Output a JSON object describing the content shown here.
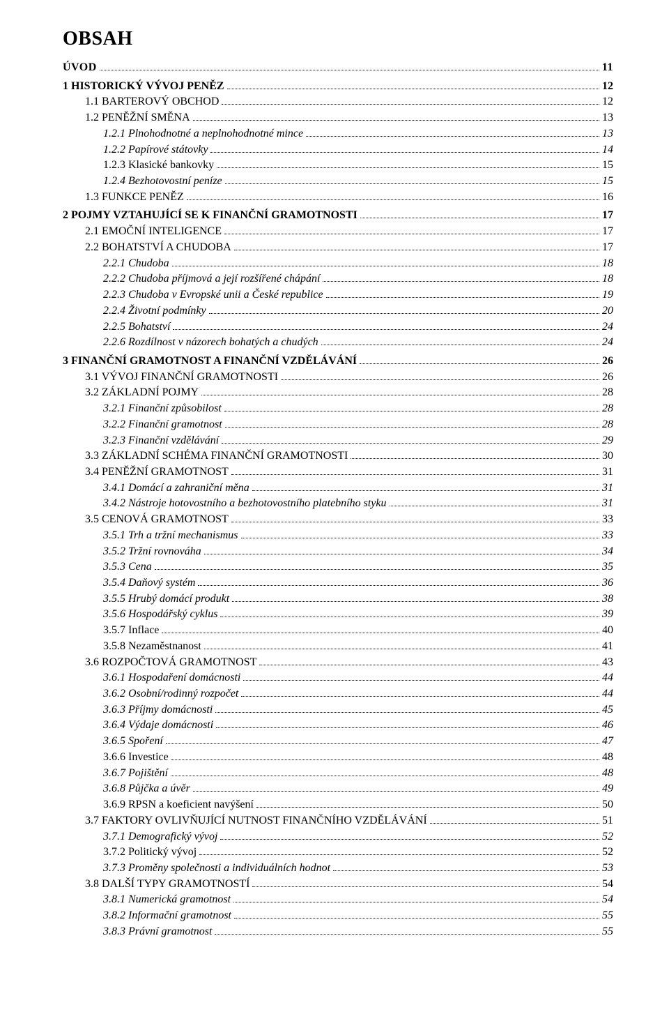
{
  "title": "OBSAH",
  "entries": [
    {
      "level": "lvl0-uvod",
      "label": "ÚVOD",
      "page": "11"
    },
    {
      "level": "lvl0",
      "label": "1  HISTORICKÝ VÝVOJ PENĚZ",
      "page": "12"
    },
    {
      "level": "lvl1",
      "label": "1.1  BARTEROVÝ OBCHOD",
      "page": "12"
    },
    {
      "level": "lvl1",
      "label": "1.2  PENĚŽNÍ SMĚNA",
      "page": "13"
    },
    {
      "level": "lvl2",
      "label": "1.2.1  Plnohodnotné a neplnohodnotné mince",
      "page": "13"
    },
    {
      "level": "lvl2",
      "label": "1.2.2  Papírové státovky",
      "page": "14"
    },
    {
      "level": "lvl2-plain",
      "label": "1.2.3  Klasické bankovky",
      "page": "15"
    },
    {
      "level": "lvl2",
      "label": "1.2.4  Bezhotovostní peníze",
      "page": "15"
    },
    {
      "level": "lvl1",
      "label": "1.3  FUNKCE PENĚZ",
      "page": "16"
    },
    {
      "level": "lvl0",
      "label": "2  POJMY VZTAHUJÍCÍ SE K FINANČNÍ GRAMOTNOSTI",
      "page": "17"
    },
    {
      "level": "lvl1",
      "label": "2.1  EMOČNÍ INTELIGENCE",
      "page": "17"
    },
    {
      "level": "lvl1",
      "label": "2.2  BOHATSTVÍ A CHUDOBA",
      "page": "17"
    },
    {
      "level": "lvl2",
      "label": "2.2.1  Chudoba",
      "page": "18"
    },
    {
      "level": "lvl2",
      "label": "2.2.2  Chudoba příjmová a její rozšířené chápání",
      "page": "18"
    },
    {
      "level": "lvl2",
      "label": "2.2.3  Chudoba v Evropské unii a České republice",
      "page": "19"
    },
    {
      "level": "lvl2",
      "label": "2.2.4  Životní podmínky",
      "page": "20"
    },
    {
      "level": "lvl2",
      "label": "2.2.5  Bohatství",
      "page": "24"
    },
    {
      "level": "lvl2",
      "label": "2.2.6  Rozdílnost v názorech bohatých a chudých",
      "page": "24"
    },
    {
      "level": "lvl0",
      "label": "3  FINANČNÍ GRAMOTNOST A FINANČNÍ VZDĚLÁVÁNÍ",
      "page": "26"
    },
    {
      "level": "lvl1",
      "label": "3.1  VÝVOJ FINANČNÍ GRAMOTNOSTI",
      "page": "26"
    },
    {
      "level": "lvl1",
      "label": "3.2  ZÁKLADNÍ POJMY",
      "page": "28"
    },
    {
      "level": "lvl2",
      "label": "3.2.1  Finanční způsobilost",
      "page": "28"
    },
    {
      "level": "lvl2",
      "label": "3.2.2  Finanční gramotnost",
      "page": "28"
    },
    {
      "level": "lvl2",
      "label": "3.2.3  Finanční vzdělávání",
      "page": "29"
    },
    {
      "level": "lvl1",
      "label": "3.3  ZÁKLADNÍ SCHÉMA FINANČNÍ GRAMOTNOSTI",
      "page": "30"
    },
    {
      "level": "lvl1",
      "label": "3.4  PENĚŽNÍ GRAMOTNOST",
      "page": "31"
    },
    {
      "level": "lvl2",
      "label": "3.4.1  Domácí a zahraniční měna",
      "page": "31"
    },
    {
      "level": "lvl2",
      "label": "3.4.2  Nástroje hotovostního a bezhotovostního platebního styku",
      "page": "31"
    },
    {
      "level": "lvl1",
      "label": "3.5  CENOVÁ GRAMOTNOST",
      "page": "33"
    },
    {
      "level": "lvl2",
      "label": "3.5.1  Trh a tržní mechanismus",
      "page": "33"
    },
    {
      "level": "lvl2",
      "label": "3.5.2  Tržní rovnováha",
      "page": "34"
    },
    {
      "level": "lvl2",
      "label": "3.5.3  Cena",
      "page": "35"
    },
    {
      "level": "lvl2",
      "label": "3.5.4  Daňový systém",
      "page": "36"
    },
    {
      "level": "lvl2",
      "label": "3.5.5  Hrubý domácí produkt",
      "page": "38"
    },
    {
      "level": "lvl2",
      "label": "3.5.6  Hospodářský cyklus",
      "page": "39"
    },
    {
      "level": "lvl2-plain",
      "label": "3.5.7  Inflace",
      "page": "40"
    },
    {
      "level": "lvl2-plain",
      "label": "3.5.8  Nezaměstnanost",
      "page": "41"
    },
    {
      "level": "lvl1",
      "label": "3.6  ROZPOČTOVÁ GRAMOTNOST",
      "page": "43"
    },
    {
      "level": "lvl2",
      "label": "3.6.1  Hospodaření domácnosti",
      "page": "44"
    },
    {
      "level": "lvl2",
      "label": "3.6.2  Osobní/rodinný rozpočet",
      "page": "44"
    },
    {
      "level": "lvl2",
      "label": "3.6.3  Příjmy domácnosti",
      "page": "45"
    },
    {
      "level": "lvl2",
      "label": "3.6.4  Výdaje domácnosti",
      "page": "46"
    },
    {
      "level": "lvl2",
      "label": "3.6.5  Spoření",
      "page": "47"
    },
    {
      "level": "lvl2-plain",
      "label": "3.6.6  Investice",
      "page": "48"
    },
    {
      "level": "lvl2",
      "label": "3.6.7  Pojištění",
      "page": "48"
    },
    {
      "level": "lvl2",
      "label": "3.6.8  Půjčka a úvěr",
      "page": "49"
    },
    {
      "level": "lvl2-plain",
      "label": "3.6.9  RPSN a koeficient navýšení",
      "page": "50"
    },
    {
      "level": "lvl1",
      "label": "3.7  FAKTORY OVLIVŇUJÍCÍ NUTNOST FINANČNÍHO VZDĚLÁVÁNÍ",
      "page": "51"
    },
    {
      "level": "lvl2",
      "label": "3.7.1  Demografický vývoj",
      "page": "52"
    },
    {
      "level": "lvl2-plain",
      "label": "3.7.2  Politický vývoj",
      "page": "52"
    },
    {
      "level": "lvl2",
      "label": "3.7.3  Proměny společnosti a individuálních hodnot",
      "page": "53"
    },
    {
      "level": "lvl1",
      "label": "3.8  DALŠÍ TYPY GRAMOTNOSTÍ",
      "page": "54"
    },
    {
      "level": "lvl2",
      "label": "3.8.1  Numerická gramotnost",
      "page": "54"
    },
    {
      "level": "lvl2",
      "label": "3.8.2  Informační gramotnost",
      "page": "55"
    },
    {
      "level": "lvl2",
      "label": "3.8.3  Právní gramotnost",
      "page": "55"
    }
  ]
}
